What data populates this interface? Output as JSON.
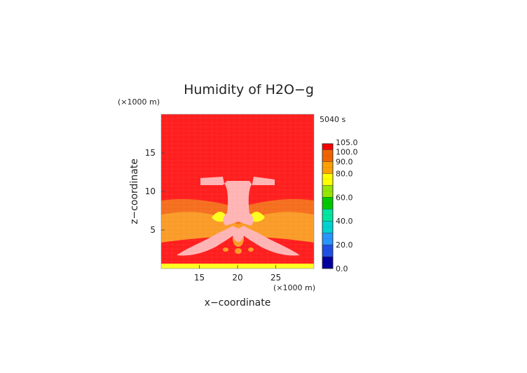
{
  "chart_data": {
    "type": "heatmap",
    "title": "Humidity of H2O−g",
    "time_label": "5040 s",
    "xlabel": "x−coordinate",
    "ylabel": "z−coordinate",
    "x_unit": "(×1000 m)",
    "z_unit": "(×1000 m)",
    "xlim": [
      10,
      30
    ],
    "ylim": [
      0,
      20
    ],
    "x_ticks": [
      15,
      20,
      25
    ],
    "y_ticks": [
      5,
      10,
      15
    ],
    "colorbar": {
      "levels": [
        0,
        10,
        20,
        30,
        40,
        50,
        60,
        70,
        80,
        90,
        100,
        105
      ],
      "labels": [
        "0.0",
        "20.0",
        "40.0",
        "60.0",
        "80.0",
        "90.0",
        "100.0",
        "105.0"
      ],
      "label_values": [
        0,
        20,
        40,
        60,
        80,
        90,
        100,
        105
      ],
      "colors": [
        "#0000a0",
        "#1e50e6",
        "#2896ff",
        "#00d2d2",
        "#00e6a0",
        "#00c800",
        "#96e600",
        "#ffff00",
        "#ffa000",
        "#f06400",
        "#ff0000",
        "#ffffff"
      ]
    },
    "field_colors": {
      "saturated": "#ff1e1e",
      "cloud": "#ffb4b4",
      "moist": "#f56e1e",
      "mid": "#fa9b28",
      "dry": "#ffd73c",
      "very_dry": "#ffff1e"
    }
  }
}
